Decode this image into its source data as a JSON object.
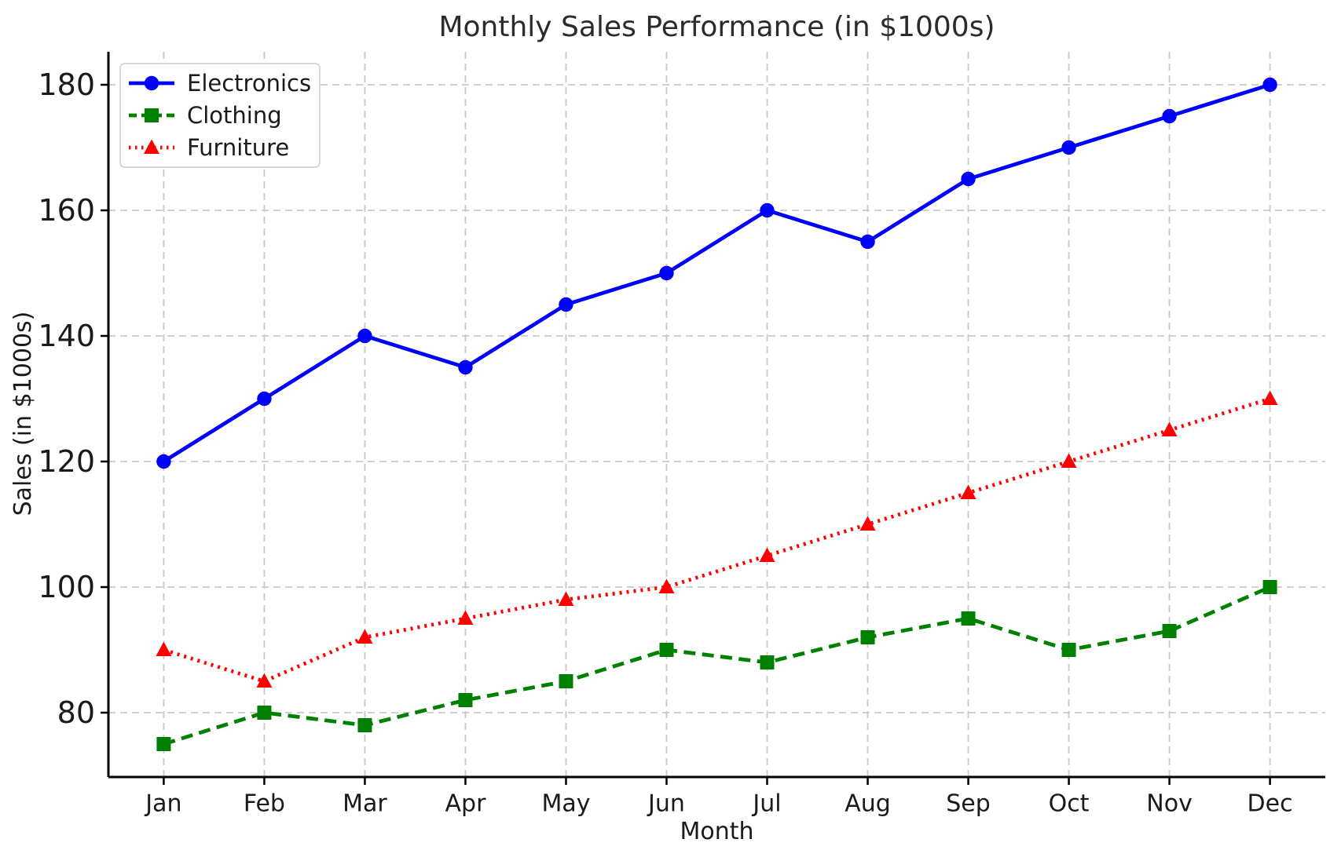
{
  "chart_data": {
    "type": "line",
    "title": "Monthly Sales Performance (in $1000s)",
    "xlabel": "Month",
    "ylabel": "Sales (in $1000s)",
    "categories": [
      "Jan",
      "Feb",
      "Mar",
      "Apr",
      "May",
      "Jun",
      "Jul",
      "Aug",
      "Sep",
      "Oct",
      "Nov",
      "Dec"
    ],
    "series": [
      {
        "name": "Electronics",
        "values": [
          120,
          130,
          140,
          135,
          145,
          150,
          160,
          155,
          165,
          170,
          175,
          180
        ],
        "color": "#0000ff",
        "linestyle": "solid",
        "marker": "circle"
      },
      {
        "name": "Clothing",
        "values": [
          75,
          80,
          78,
          82,
          85,
          90,
          88,
          92,
          95,
          90,
          93,
          100
        ],
        "color": "#008000",
        "linestyle": "dashed",
        "marker": "square"
      },
      {
        "name": "Furniture",
        "values": [
          90,
          85,
          92,
          95,
          98,
          100,
          105,
          110,
          115,
          120,
          125,
          130
        ],
        "color": "#ff0000",
        "linestyle": "dotted",
        "marker": "triangle"
      }
    ],
    "ylim": [
      69.75,
      185.25
    ],
    "yticks": [
      80,
      100,
      120,
      140,
      160,
      180
    ],
    "grid": true,
    "grid_style": "dashed",
    "grid_color": "#c9c9c9",
    "legend_position": "upper left",
    "spine_color": "#000000",
    "tick_label_color": "#1a1a1a"
  }
}
